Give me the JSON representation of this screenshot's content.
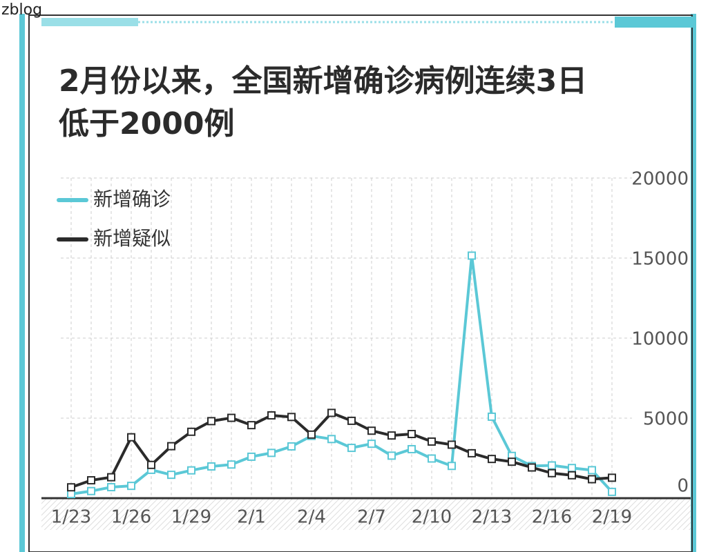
{
  "watermark": "zblog",
  "chart_data": {
    "type": "line",
    "title": [
      "2月份以来，全国新增确诊病例连续3日",
      "低于2000例"
    ],
    "categories": [
      "1/23",
      null,
      null,
      "1/26",
      null,
      null,
      "1/29",
      null,
      null,
      "2/1",
      null,
      null,
      "2/4",
      null,
      null,
      "2/7",
      null,
      null,
      "2/10",
      null,
      null,
      "2/13",
      null,
      null,
      "2/16",
      null,
      null,
      "2/19"
    ],
    "series": [
      {
        "name": "新增确诊",
        "color": "#5bc8d6",
        "values": [
          259,
          444,
          688,
          769,
          1771,
          1459,
          1737,
          1982,
          2102,
          2590,
          2829,
          3235,
          3887,
          3694,
          3143,
          3399,
          2656,
          3062,
          2478,
          2015,
          15152,
          5090,
          2641,
          2009,
          2048,
          1886,
          1749,
          394
        ]
      },
      {
        "name": "新增疑似",
        "color": "#2b2b2b",
        "values": [
          680,
          1118,
          1309,
          3806,
          2077,
          3248,
          4148,
          4812,
          5019,
          4562,
          5173,
          5072,
          3971,
          5328,
          4833,
          4214,
          3916,
          4008,
          3536,
          3342,
          2807,
          2450,
          2277,
          1918,
          1563,
          1432,
          1185,
          1277
        ]
      }
    ],
    "ylim": [
      0,
      20000
    ],
    "yticks": [
      0,
      5000,
      10000,
      15000,
      20000
    ],
    "grid": true,
    "legend": "top-left"
  }
}
